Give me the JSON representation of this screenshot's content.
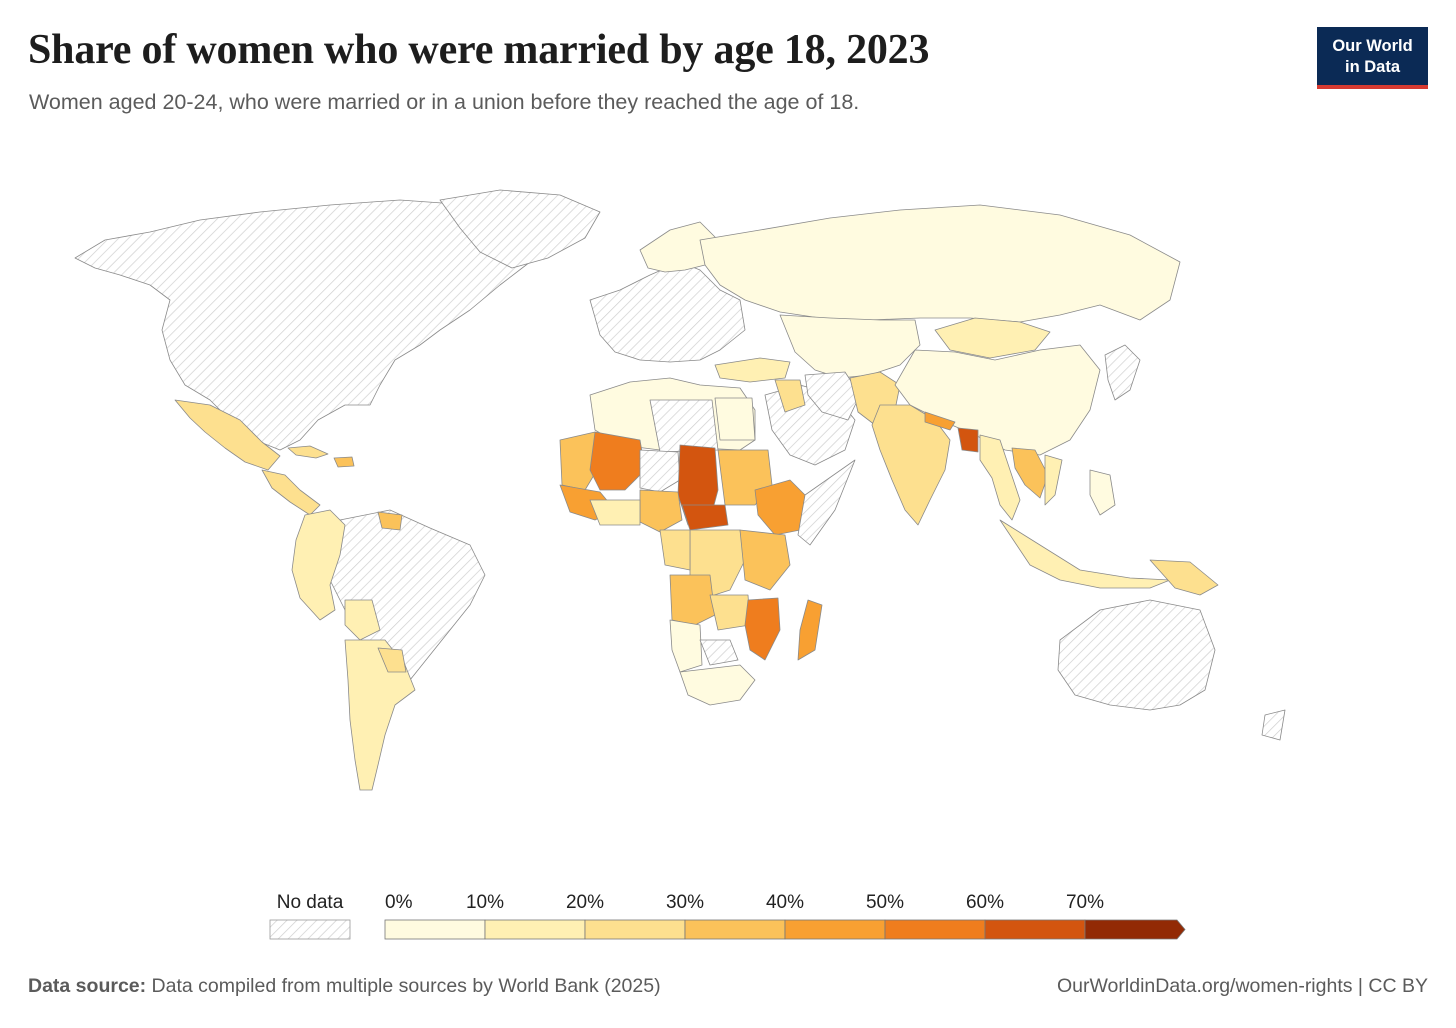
{
  "header": {
    "title": "Share of women who were married by age 18, 2023",
    "subtitle": "Women aged 20-24, who were married or in a union before they reached the age of 18."
  },
  "logo": {
    "line1": "Our World",
    "line2": "in Data"
  },
  "legend": {
    "no_data_label": "No data",
    "ticks": [
      "0%",
      "10%",
      "20%",
      "30%",
      "40%",
      "50%",
      "60%",
      "70%"
    ],
    "colors": [
      "#fffbe0",
      "#fff0b3",
      "#fde08f",
      "#fbc25a",
      "#f8a032",
      "#ef7d1e",
      "#d3550f",
      "#922a05"
    ]
  },
  "footer": {
    "source_label": "Data source:",
    "source_text": "Data compiled from multiple sources by World Bank (2025)",
    "url": "OurWorldinData.org/women-rights | CC BY"
  }
}
